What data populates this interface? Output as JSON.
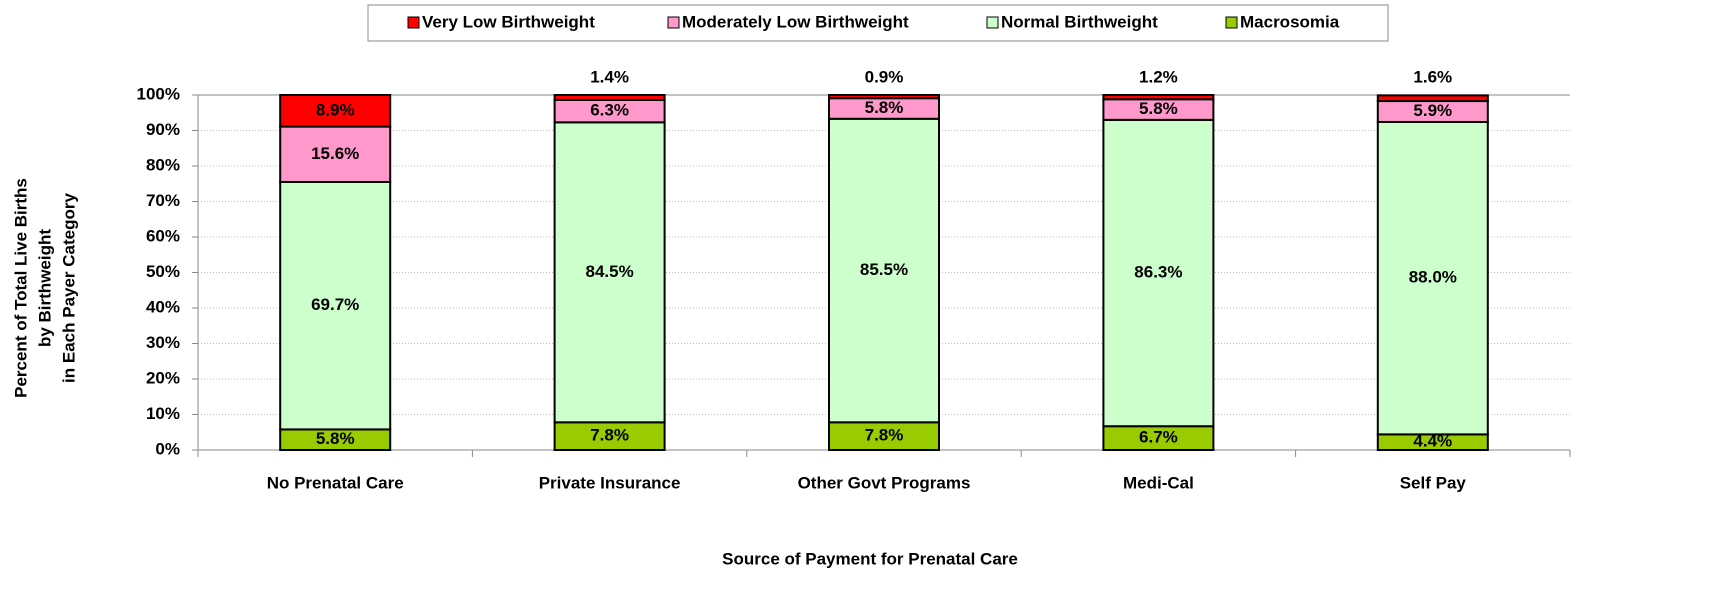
{
  "chart_data": {
    "type": "stacked_bar",
    "categories": [
      "No Prenatal Care",
      "Private Insurance",
      "Other Govt Programs",
      "Medi-Cal",
      "Self Pay"
    ],
    "series": [
      {
        "name": "Very Low Birthweight",
        "color": "#ff0000",
        "values": [
          8.9,
          1.4,
          0.9,
          1.2,
          1.6
        ],
        "value_labels": [
          "8.9%",
          "1.4%",
          "0.9%",
          "1.2%",
          "1.6%"
        ]
      },
      {
        "name": "Moderately Low Birthweight",
        "color": "#ff99cc",
        "values": [
          15.6,
          6.3,
          5.8,
          5.8,
          5.9
        ],
        "value_labels": [
          "15.6%",
          "6.3%",
          "5.8%",
          "5.8%",
          "5.9%"
        ]
      },
      {
        "name": "Normal Birthweight",
        "color": "#ccffcc",
        "values": [
          69.7,
          84.5,
          85.5,
          86.3,
          88.0
        ],
        "value_labels": [
          "69.7%",
          "84.5%",
          "85.5%",
          "86.3%",
          "88.0%"
        ]
      },
      {
        "name": "Macrosomia",
        "color": "#99cc00",
        "values": [
          5.8,
          7.8,
          7.8,
          6.7,
          4.4
        ],
        "value_labels": [
          "5.8%",
          "7.8%",
          "7.8%",
          "6.7%",
          "4.4%"
        ]
      }
    ],
    "xlabel": "Source of Payment for Prenatal Care",
    "ylabel": [
      "Percent of Total Live Births",
      "by Birthweight",
      "in Each Payer Category"
    ],
    "ylim": [
      0,
      100
    ],
    "yticks": [
      {
        "value": 0,
        "label": "0%"
      },
      {
        "value": 10,
        "label": "10%"
      },
      {
        "value": 20,
        "label": "20%"
      },
      {
        "value": 30,
        "label": "30%"
      },
      {
        "value": 40,
        "label": "40%"
      },
      {
        "value": 50,
        "label": "50%"
      },
      {
        "value": 60,
        "label": "60%"
      },
      {
        "value": 70,
        "label": "70%"
      },
      {
        "value": 80,
        "label": "80%"
      },
      {
        "value": 90,
        "label": "90%"
      },
      {
        "value": 100,
        "label": "100%"
      }
    ],
    "grid": true,
    "legend": "top"
  }
}
